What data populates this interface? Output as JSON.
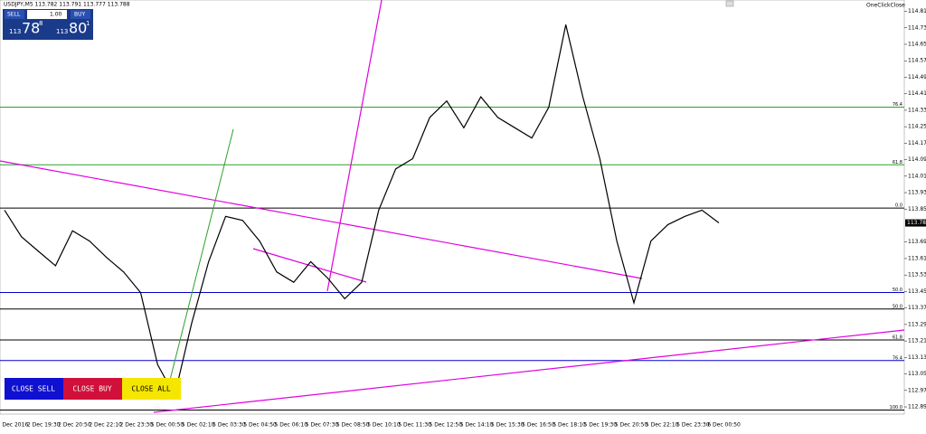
{
  "header": {
    "symbol_info": "USDJPY,M5  113.782 113.791 113.777 113.788",
    "one_click": "OneClickClose"
  },
  "panel": {
    "sell": "SELL",
    "lot": "1.00",
    "buy": "BUY",
    "bid_prefix": "113",
    "bid_big": "78",
    "bid_small": "8",
    "ask_prefix": "113",
    "ask_big": "80",
    "ask_small": "1"
  },
  "buttons": [
    "CLOSE SELL",
    "CLOSE BUY",
    "CLOSE ALL"
  ],
  "price_axis": {
    "ylim": [
      112.86,
      114.87
    ],
    "yticks": [
      114.815,
      114.735,
      114.655,
      114.575,
      114.495,
      114.415,
      114.335,
      114.255,
      114.175,
      114.095,
      114.015,
      113.935,
      113.855,
      113.695,
      113.615,
      113.535,
      113.455,
      113.375,
      113.295,
      113.215,
      113.135,
      113.055,
      112.975,
      112.895
    ]
  },
  "current_price": 113.788,
  "time_axis": [
    "2 Dec 2016",
    "2 Dec 19:30",
    "2 Dec 20:50",
    "2 Dec 22:10",
    "2 Dec 23:30",
    "5 Dec 00:50",
    "5 Dec 02:10",
    "5 Dec 03:30",
    "5 Dec 04:50",
    "5 Dec 06:10",
    "5 Dec 07:30",
    "5 Dec 08:50",
    "5 Dec 10:10",
    "5 Dec 11:30",
    "5 Dec 12:50",
    "5 Dec 14:10",
    "5 Dec 15:30",
    "5 Dec 16:50",
    "5 Dec 18:10",
    "5 Dec 19:30",
    "5 Dec 20:50",
    "5 Dec 22:10",
    "5 Dec 23:30",
    "6 Dec 00:50"
  ],
  "levels": [
    {
      "label": "76.4",
      "price": 114.35,
      "color": "#2ca02c"
    },
    {
      "label": "61.8",
      "price": 114.07,
      "color": "#2ca02c"
    },
    {
      "label": "0.0",
      "price": 113.86,
      "color": "#000000"
    },
    {
      "label": "50.0",
      "price": 113.45,
      "color": "#0000cc"
    },
    {
      "label": "50.0",
      "price": 113.37,
      "color": "#000000"
    },
    {
      "label": "61.8",
      "price": 113.22,
      "color": "#000000"
    },
    {
      "label": "76.4",
      "price": 113.12,
      "color": "#0000cc"
    },
    {
      "label": "100.0",
      "price": 112.88,
      "color": "#000000"
    }
  ],
  "price": {
    "values": [
      113.85,
      113.72,
      113.65,
      113.58,
      113.75,
      113.7,
      113.62,
      113.55,
      113.45,
      113.1,
      112.95,
      113.3,
      113.6,
      113.82,
      113.8,
      113.7,
      113.55,
      113.5,
      113.6,
      113.52,
      113.42,
      113.5,
      113.85,
      114.05,
      114.1,
      114.3,
      114.38,
      114.25,
      114.4,
      114.3,
      114.25,
      114.2,
      114.35,
      114.75,
      114.4,
      114.1,
      113.7,
      113.4,
      113.7,
      113.78,
      113.82,
      113.85,
      113.788
    ]
  }
}
